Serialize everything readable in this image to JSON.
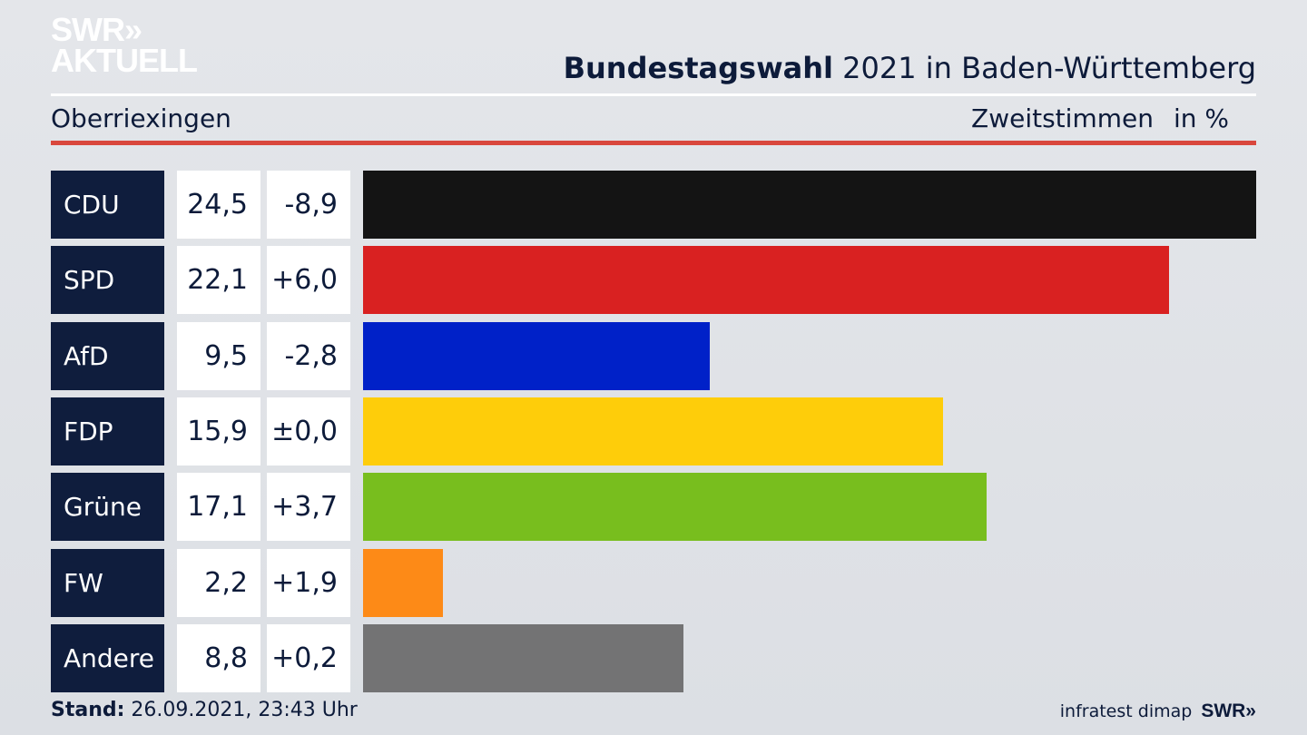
{
  "logo": {
    "line1": "SWR»",
    "line2": "AKTUELL"
  },
  "header": {
    "title_bold": "Bundestagswahl",
    "title_rest": " 2021 in Baden-Württemberg",
    "region": "Oberriexingen",
    "vote_type": "Zweitstimmen",
    "unit": "in %"
  },
  "chart_data": {
    "type": "bar",
    "categories": [
      "CDU",
      "SPD",
      "AfD",
      "FDP",
      "Grüne",
      "FW",
      "Andere"
    ],
    "values": [
      24.5,
      22.1,
      9.5,
      15.9,
      17.1,
      2.2,
      8.8
    ],
    "value_labels": [
      "24,5",
      "22,1",
      "9,5",
      "15,9",
      "17,1",
      "2,2",
      "8,8"
    ],
    "change_labels": [
      "-8,9",
      "+6,0",
      "-2,8",
      "±0,0",
      "+3,7",
      "+1,9",
      "+0,2"
    ],
    "changes": [
      -8.9,
      6.0,
      -2.8,
      0.0,
      3.7,
      1.9,
      0.2
    ],
    "colors": [
      "#141414",
      "#d92121",
      "#0021c8",
      "#fecd0a",
      "#78be1e",
      "#fd8a17",
      "#737374"
    ],
    "title": "Bundestagswahl 2021 in Baden-Württemberg",
    "xlabel": "",
    "ylabel": "Zweitstimmen in %",
    "xlim": [
      0,
      24.5
    ],
    "orientation": "horizontal",
    "grid": false,
    "legend": "none"
  },
  "footer": {
    "stand_label": "Stand:",
    "stand_value": " 26.09.2021, 23:43 Uhr",
    "source": "infratest dimap",
    "brand": "SWR»"
  }
}
